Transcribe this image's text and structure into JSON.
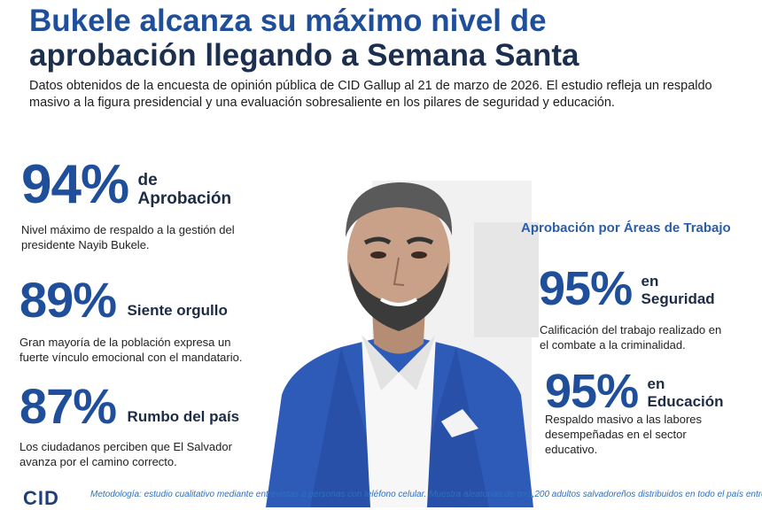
{
  "header": {
    "title_line1": "Bukele alcanza su máximo nivel de",
    "title_line2": "aprobación llegando a Semana Santa",
    "subtitle": "Datos obtenidos de la encuesta de opinión pública de CID Gallup al 21 de marzo de 2026. El estudio refleja un respaldo masivo a la figura presidencial y una evaluación sobresaliente en los pilares de seguridad y educación."
  },
  "stats": [
    {
      "value": "94%",
      "label_top": "de",
      "label": "Aprobación",
      "description": "Nivel máximo de respaldo a la gestión del presidente Nayib Bukele."
    },
    {
      "value": "89%",
      "label": "Siente orgullo",
      "description": "Gran mayoría de la población expresa un fuerte vínculo emocional con el mandatario."
    },
    {
      "value": "87%",
      "label": "Rumbo del país",
      "description": "Los ciudadanos perciben que El Salvador avanza por el camino correcto."
    }
  ],
  "areas": {
    "title": "Aprobación por Áreas de Trabajo",
    "items": [
      {
        "value": "95%",
        "label_top": "en",
        "label": "Seguridad",
        "description": "Calificación del trabajo realizado en el combate a la criminalidad."
      },
      {
        "value": "95%",
        "label_top": "en",
        "label": "Educación",
        "description": "Respaldo masivo a las labores desempeñadas en el sector educativo."
      }
    ]
  },
  "footer": {
    "logo": "CID",
    "methodology": "Metodología: estudio cualitativo mediante entrevistas a personas con teléfono celular. Muestra aleatoriaa de n=1,200 adultos salvadoreños distribuidos en todo el país entre"
  },
  "colors": {
    "accent": "#1f4e9a",
    "dark": "#1c2f4f",
    "suit": "#2f5bb8"
  }
}
